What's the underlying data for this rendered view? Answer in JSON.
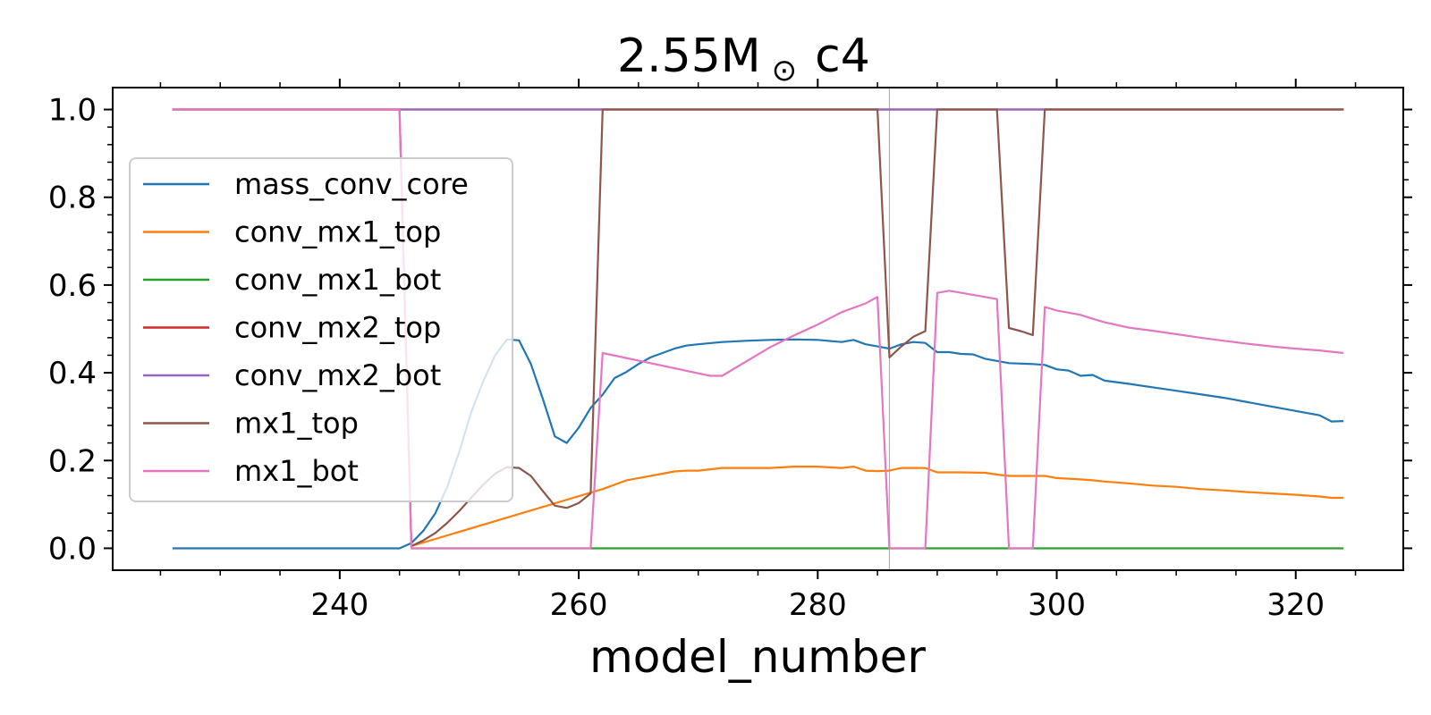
{
  "chart_data": {
    "type": "line",
    "title": "2.55M",
    "title_symbol": "⊙",
    "title_suffix": "c4",
    "xlabel": "model_number",
    "ylabel": "",
    "xlim": [
      221,
      329
    ],
    "ylim": [
      -0.05,
      1.05
    ],
    "xticks": [
      240,
      260,
      280,
      300,
      320
    ],
    "yticks": [
      0.0,
      0.2,
      0.4,
      0.6,
      0.8,
      1.0
    ],
    "ytick_labels": [
      "0.0",
      "0.2",
      "0.4",
      "0.6",
      "0.8",
      "1.0"
    ],
    "xtick_labels": [
      "240",
      "260",
      "280",
      "300",
      "320"
    ],
    "grid": false,
    "legend_position": "center-left",
    "vline_x": 286,
    "series": [
      {
        "name": "mass_conv_core",
        "color": "#1f77b4",
        "x": [
          226,
          245,
          246,
          247,
          248,
          249,
          250,
          251,
          252,
          253,
          254,
          255,
          256,
          257,
          258,
          259,
          260,
          261,
          262,
          263,
          264,
          265,
          266,
          267,
          268,
          269,
          270,
          272,
          274,
          276,
          278,
          280,
          282,
          283,
          284,
          285,
          286,
          287,
          288,
          289,
          290,
          291,
          292,
          293,
          294,
          295,
          296,
          297,
          298,
          299,
          300,
          301,
          302,
          303,
          304,
          306,
          308,
          310,
          312,
          314,
          316,
          318,
          320,
          322,
          323,
          324
        ],
        "y": [
          0,
          0,
          0.012,
          0.04,
          0.08,
          0.14,
          0.22,
          0.31,
          0.38,
          0.44,
          0.476,
          0.474,
          0.42,
          0.34,
          0.255,
          0.24,
          0.275,
          0.32,
          0.35,
          0.388,
          0.402,
          0.42,
          0.435,
          0.445,
          0.455,
          0.462,
          0.465,
          0.47,
          0.473,
          0.475,
          0.476,
          0.475,
          0.47,
          0.475,
          0.465,
          0.46,
          0.455,
          0.465,
          0.47,
          0.468,
          0.447,
          0.447,
          0.443,
          0.442,
          0.432,
          0.427,
          0.422,
          0.421,
          0.42,
          0.418,
          0.408,
          0.405,
          0.393,
          0.395,
          0.382,
          0.375,
          0.367,
          0.359,
          0.351,
          0.343,
          0.333,
          0.323,
          0.313,
          0.303,
          0.289,
          0.29
        ]
      },
      {
        "name": "conv_mx1_top",
        "color": "#ff7f0e",
        "x": [
          246,
          262,
          263,
          264,
          265,
          266,
          267,
          268,
          269,
          270,
          271,
          272,
          274,
          276,
          278,
          280,
          282,
          283,
          284,
          285,
          286,
          287,
          288,
          289,
          290,
          292,
          294,
          295,
          296,
          298,
          299,
          300,
          302,
          303,
          304,
          306,
          308,
          310,
          312,
          314,
          316,
          318,
          320,
          322,
          323,
          324
        ],
        "y": [
          0.005,
          0.135,
          0.145,
          0.155,
          0.16,
          0.165,
          0.17,
          0.175,
          0.177,
          0.177,
          0.18,
          0.183,
          0.183,
          0.183,
          0.186,
          0.186,
          0.183,
          0.186,
          0.177,
          0.176,
          0.177,
          0.183,
          0.183,
          0.183,
          0.173,
          0.173,
          0.172,
          0.168,
          0.165,
          0.165,
          0.165,
          0.16,
          0.157,
          0.155,
          0.152,
          0.148,
          0.143,
          0.14,
          0.135,
          0.132,
          0.128,
          0.125,
          0.122,
          0.118,
          0.115,
          0.115
        ]
      },
      {
        "name": "conv_mx1_bot",
        "color": "#2ca02c",
        "x": [
          246,
          324
        ],
        "y": [
          0,
          0
        ]
      },
      {
        "name": "conv_mx2_top",
        "color": "#d62728",
        "x": [
          226,
          324
        ],
        "y": [
          1,
          1
        ]
      },
      {
        "name": "conv_mx2_bot",
        "color": "#9467bd",
        "x": [
          226,
          324
        ],
        "y": [
          1,
          1
        ]
      },
      {
        "name": "mx1_top",
        "color": "#8c564b",
        "x": [
          226,
          245,
          246,
          247,
          248,
          249,
          250,
          251,
          252,
          253,
          254,
          255,
          256,
          257,
          258,
          259,
          260,
          261,
          262,
          285,
          286,
          287,
          288,
          289,
          290,
          291,
          292,
          293,
          294,
          295,
          296,
          297,
          298,
          299,
          324
        ],
        "y": [
          1,
          1,
          0.005,
          0.018,
          0.035,
          0.058,
          0.085,
          0.115,
          0.145,
          0.17,
          0.185,
          0.183,
          0.165,
          0.13,
          0.097,
          0.092,
          0.103,
          0.125,
          1,
          1,
          0.435,
          0.46,
          0.482,
          0.495,
          1,
          1,
          1,
          1,
          1,
          1,
          0.502,
          0.495,
          0.486,
          1,
          1
        ]
      },
      {
        "name": "mx1_bot",
        "color": "#e377c2",
        "x": [
          226,
          245,
          246,
          261,
          262,
          271,
          272,
          276,
          278,
          280,
          282,
          284,
          285,
          286,
          289,
          290,
          291,
          295,
          296,
          298,
          299,
          300,
          302,
          303,
          304,
          306,
          308,
          310,
          312,
          314,
          316,
          318,
          320,
          322,
          324
        ],
        "y": [
          1,
          1,
          0,
          0,
          0.445,
          0.393,
          0.393,
          0.458,
          0.485,
          0.51,
          0.538,
          0.558,
          0.573,
          0,
          0,
          0.582,
          0.587,
          0.568,
          0,
          0,
          0.55,
          0.542,
          0.532,
          0.523,
          0.515,
          0.503,
          0.496,
          0.488,
          0.48,
          0.473,
          0.466,
          0.46,
          0.455,
          0.451,
          0.445
        ]
      }
    ]
  }
}
